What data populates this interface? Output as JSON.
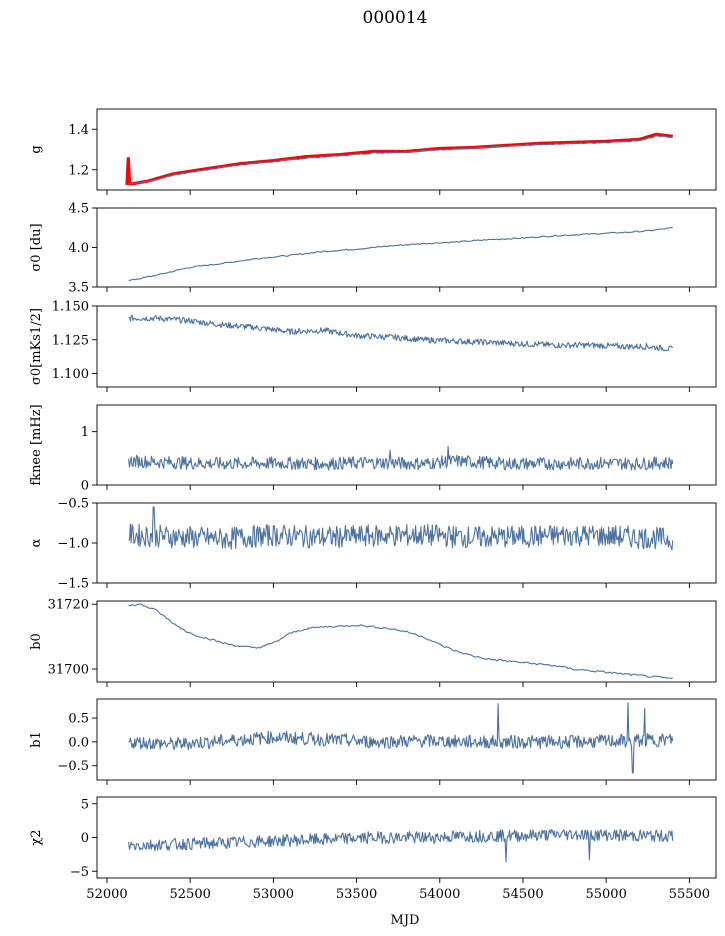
{
  "figure": {
    "title": "000014",
    "xlabel": "MJD"
  },
  "chart_data": [
    {
      "type": "line",
      "ylabel": "g",
      "xlim": [
        51940,
        55660
      ],
      "ylim": [
        1.1,
        1.5
      ],
      "yticks": [
        1.2,
        1.4
      ],
      "ytick_labels": [
        "1.2",
        "1.4"
      ],
      "series": [
        {
          "color": "#ff0000",
          "style": "thick",
          "x": [
            52120,
            52128,
            52136,
            52150,
            52250,
            52400,
            52600,
            52800,
            53000,
            53200,
            53400,
            53600,
            53800,
            54000,
            54200,
            54400,
            54600,
            54800,
            55000,
            55200,
            55300,
            55400
          ],
          "y": [
            1.125,
            1.255,
            1.13,
            1.13,
            1.145,
            1.18,
            1.205,
            1.23,
            1.245,
            1.265,
            1.275,
            1.29,
            1.29,
            1.305,
            1.31,
            1.32,
            1.33,
            1.335,
            1.34,
            1.35,
            1.375,
            1.365
          ]
        },
        {
          "color": "#4c72a0",
          "x": [
            52130,
            52250,
            52400,
            52600,
            52800,
            53000,
            53200,
            53400,
            53600,
            53800,
            54000,
            54200,
            54400,
            54600,
            54800,
            55000,
            55200,
            55300,
            55400
          ],
          "y": [
            1.13,
            1.142,
            1.175,
            1.2,
            1.225,
            1.24,
            1.258,
            1.27,
            1.283,
            1.288,
            1.3,
            1.306,
            1.316,
            1.325,
            1.33,
            1.335,
            1.345,
            1.365,
            1.362
          ]
        }
      ]
    },
    {
      "type": "line",
      "ylabel": "σ0 [du]",
      "xlim": [
        51940,
        55660
      ],
      "ylim": [
        3.5,
        4.5
      ],
      "yticks": [
        3.5,
        4.0,
        4.5
      ],
      "ytick_labels": [
        "3.5",
        "4.0",
        "4.5"
      ],
      "series": [
        {
          "color": "#4c72a0",
          "x": [
            52130,
            52300,
            52500,
            52700,
            52900,
            53100,
            53300,
            53500,
            53700,
            53900,
            54100,
            54300,
            54500,
            54700,
            54900,
            55100,
            55250,
            55400
          ],
          "y": [
            3.58,
            3.65,
            3.75,
            3.8,
            3.86,
            3.9,
            3.95,
            3.98,
            4.02,
            4.05,
            4.07,
            4.1,
            4.12,
            4.15,
            4.17,
            4.19,
            4.21,
            4.25
          ]
        }
      ]
    },
    {
      "type": "line",
      "ylabel": "σ0[mKs1/2]",
      "xlim": [
        51940,
        55660
      ],
      "ylim": [
        1.09,
        1.15
      ],
      "yticks": [
        1.1,
        1.125,
        1.15
      ],
      "ytick_labels": [
        "1.100",
        "1.125",
        "1.150"
      ],
      "series": [
        {
          "color": "#4c72a0",
          "x": [
            52130,
            52300,
            52500,
            52700,
            52900,
            53100,
            53300,
            53500,
            53700,
            53900,
            54100,
            54300,
            54500,
            54700,
            54900,
            55100,
            55250,
            55400
          ],
          "y": [
            1.141,
            1.141,
            1.139,
            1.136,
            1.134,
            1.131,
            1.132,
            1.128,
            1.127,
            1.125,
            1.124,
            1.123,
            1.122,
            1.121,
            1.121,
            1.12,
            1.12,
            1.118
          ]
        }
      ]
    },
    {
      "type": "line",
      "ylabel": "fknee [mHz]",
      "xlim": [
        51940,
        55660
      ],
      "ylim": [
        0,
        1.5
      ],
      "yticks": [
        0,
        1
      ],
      "ytick_labels": [
        "0",
        "1"
      ],
      "series": [
        {
          "color": "#4c72a0",
          "x": [
            52130,
            52400,
            52700,
            53000,
            53300,
            53600,
            53900,
            54100,
            54400,
            54700,
            55000,
            55200,
            55400
          ],
          "y": [
            0.45,
            0.42,
            0.4,
            0.41,
            0.4,
            0.42,
            0.4,
            0.45,
            0.4,
            0.4,
            0.41,
            0.4,
            0.42
          ]
        }
      ]
    },
    {
      "type": "line",
      "ylabel": "α",
      "xlim": [
        51940,
        55660
      ],
      "ylim": [
        -1.5,
        -0.5
      ],
      "yticks": [
        -1.5,
        -1.0,
        -0.5
      ],
      "ytick_labels": [
        "−1.5",
        "−1.0",
        "−0.5"
      ],
      "series": [
        {
          "color": "#4c72a0",
          "x": [
            52130,
            52400,
            52700,
            53000,
            53300,
            53600,
            53900,
            54200,
            54500,
            54800,
            55100,
            55400
          ],
          "y": [
            -0.9,
            -0.92,
            -0.95,
            -0.9,
            -0.93,
            -0.91,
            -0.9,
            -0.93,
            -0.92,
            -0.9,
            -0.92,
            -0.95
          ]
        }
      ]
    },
    {
      "type": "line",
      "ylabel": "b0",
      "xlim": [
        51940,
        55660
      ],
      "ylim": [
        31696,
        31721
      ],
      "yticks": [
        31700,
        31720
      ],
      "ytick_labels": [
        "31700",
        "31720"
      ],
      "series": [
        {
          "color": "#4c72a0",
          "x": [
            52130,
            52200,
            52300,
            52400,
            52500,
            52600,
            52700,
            52800,
            52900,
            53000,
            53100,
            53200,
            53300,
            53400,
            53500,
            53600,
            53700,
            53800,
            53900,
            54000,
            54100,
            54200,
            54300,
            54400,
            54500,
            54600,
            54700,
            54800,
            54900,
            55000,
            55100,
            55200,
            55300,
            55400
          ],
          "y": [
            31719.5,
            31720,
            31718,
            31714,
            31711,
            31709.5,
            31708,
            31707,
            31706.5,
            31708,
            31711,
            31712.5,
            31713,
            31713.2,
            31713.6,
            31713,
            31712.5,
            31711.5,
            31710,
            31707.5,
            31705.5,
            31704,
            31703,
            31702.5,
            31702,
            31701.5,
            31701,
            31700,
            31699.5,
            31699,
            31698.5,
            31698,
            31697.5,
            31697
          ]
        }
      ]
    },
    {
      "type": "line",
      "ylabel": "b1",
      "xlim": [
        51940,
        55660
      ],
      "ylim": [
        -0.8,
        0.9
      ],
      "yticks": [
        -0.5,
        0.0,
        0.5
      ],
      "ytick_labels": [
        "−0.5",
        "0.0",
        "0.5"
      ],
      "series": [
        {
          "color": "#4c72a0",
          "x": [
            52130,
            52400,
            52700,
            53000,
            53300,
            53600,
            53900,
            54200,
            54500,
            54800,
            55100,
            55400
          ],
          "y": [
            0.0,
            -0.05,
            0.02,
            0.1,
            0.05,
            0.0,
            0.02,
            0.0,
            0.0,
            0.0,
            0.02,
            0.05
          ]
        }
      ]
    },
    {
      "type": "line",
      "ylabel": "χ2",
      "xlim": [
        51940,
        55660
      ],
      "ylim": [
        -6,
        6
      ],
      "yticks": [
        -5,
        0,
        5
      ],
      "ytick_labels": [
        "−5",
        "0",
        "5"
      ],
      "series": [
        {
          "color": "#4c72a0",
          "x": [
            52130,
            52400,
            52700,
            53000,
            53300,
            53600,
            53900,
            54200,
            54500,
            54800,
            55100,
            55400
          ],
          "y": [
            -1.2,
            -1.0,
            -0.8,
            -0.5,
            -0.3,
            0.0,
            0.0,
            0.2,
            0.3,
            0.5,
            0.3,
            0.2
          ]
        }
      ]
    }
  ],
  "xaxis": {
    "ticks": [
      52000,
      52500,
      53000,
      53500,
      54000,
      54500,
      55000,
      55500
    ],
    "tick_labels": [
      "52000",
      "52500",
      "53000",
      "53500",
      "54000",
      "54500",
      "55000",
      "55500"
    ]
  }
}
